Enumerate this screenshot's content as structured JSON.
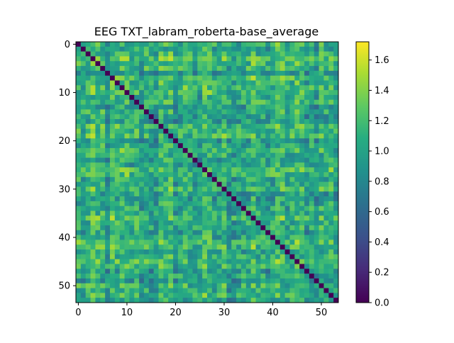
{
  "chart_data": {
    "type": "heatmap",
    "title": "EEG TXT_labram_roberta-base_average",
    "xlabel": "",
    "ylabel": "",
    "n": 54,
    "x_ticks": [
      0,
      10,
      20,
      30,
      40,
      50
    ],
    "y_ticks": [
      0,
      10,
      20,
      30,
      40,
      50
    ],
    "colorbar": {
      "colormap": "viridis",
      "vmin": 0.0,
      "vmax": 1.72,
      "ticks": [
        0.0,
        0.2,
        0.4,
        0.6,
        0.8,
        1.0,
        1.2,
        1.4,
        1.6
      ]
    },
    "diagonal_value": 0.0,
    "off_diagonal_range": [
      0.6,
      1.72
    ],
    "off_diagonal_typical": 1.05,
    "grid": false
  }
}
